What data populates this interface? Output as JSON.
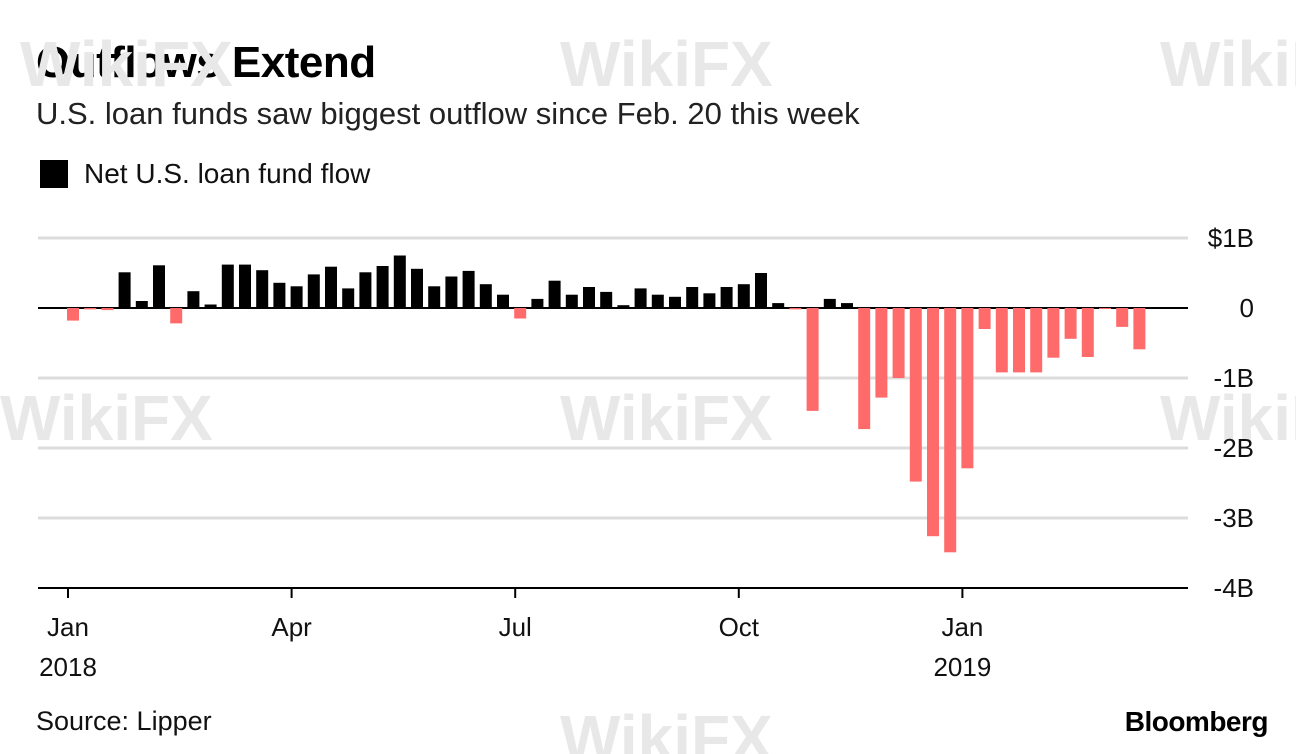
{
  "title": "Outflows Extend",
  "subtitle": "U.S. loan funds saw biggest outflow since Feb. 20 this week",
  "legend": {
    "label": "Net U.S. loan fund flow"
  },
  "source": "Source: Lipper",
  "brand": "Bloomberg",
  "watermark": "WikiFX",
  "colors": {
    "positive": "#000000",
    "negative": "#ff6b6b",
    "grid": "#dcdcdc",
    "axis": "#000000"
  },
  "chart_data": {
    "type": "bar",
    "title": "Outflows Extend",
    "subtitle": "U.S. loan funds saw biggest outflow since Feb. 20 this week",
    "ylabel": "Net U.S. loan fund flow ($B)",
    "xlabel": "",
    "ylim": [
      -4,
      1
    ],
    "y_ticks": [
      {
        "value": 1,
        "label": "$1B"
      },
      {
        "value": 0,
        "label": "0"
      },
      {
        "value": -1,
        "label": "-1B"
      },
      {
        "value": -2,
        "label": "-2B"
      },
      {
        "value": -3,
        "label": "-3B"
      },
      {
        "value": -4,
        "label": "-4B"
      }
    ],
    "x_ticks": [
      {
        "week_index": 0,
        "label": "Jan",
        "sublabel": "2018"
      },
      {
        "week_index": 13,
        "label": "Apr",
        "sublabel": ""
      },
      {
        "week_index": 26,
        "label": "Jul",
        "sublabel": ""
      },
      {
        "week_index": 39,
        "label": "Oct",
        "sublabel": ""
      },
      {
        "week_index": 52,
        "label": "Jan",
        "sublabel": "2019"
      }
    ],
    "series": [
      {
        "name": "Net U.S. loan fund flow",
        "unit": "$B",
        "values": [
          -0.18,
          -0.02,
          -0.03,
          0.51,
          0.1,
          0.61,
          -0.22,
          0.24,
          0.05,
          0.62,
          0.62,
          0.54,
          0.36,
          0.31,
          0.48,
          0.59,
          0.28,
          0.51,
          0.6,
          0.75,
          0.56,
          0.31,
          0.45,
          0.53,
          0.34,
          0.19,
          -0.15,
          0.13,
          0.39,
          0.19,
          0.3,
          0.23,
          0.04,
          0.28,
          0.19,
          0.16,
          0.3,
          0.21,
          0.3,
          0.34,
          0.5,
          0.07,
          -0.02,
          -1.47,
          0.13,
          0.07,
          -1.73,
          -1.28,
          -1.0,
          -2.48,
          -3.26,
          -3.49,
          -2.29,
          -0.3,
          -0.92,
          -0.92,
          -0.92,
          -0.71,
          -0.44,
          -0.7,
          -0.01,
          -0.27,
          -0.59
        ]
      }
    ]
  }
}
